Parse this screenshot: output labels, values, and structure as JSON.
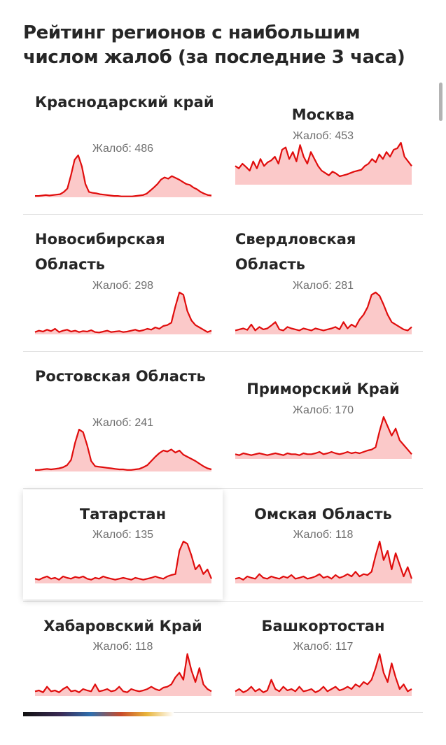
{
  "title": "Рейтинг регионов с наибольшим числом жалоб (за последние 3 часа)",
  "count_prefix": "Жалоб:",
  "colors": {
    "line": "#e00d0d",
    "fill": "#fbc9c9",
    "title": "#262626",
    "count_text": "#6f6f6f"
  },
  "regions": [
    {
      "name": "Краснодарский край",
      "count": "486",
      "series": [
        3,
        3,
        4,
        5,
        4,
        5,
        6,
        7,
        12,
        20,
        50,
        85,
        95,
        70,
        30,
        12,
        10,
        9,
        7,
        6,
        5,
        4,
        3,
        3,
        2,
        2,
        2,
        2,
        3,
        4,
        5,
        8,
        15,
        22,
        30,
        40,
        45,
        42,
        48,
        44,
        40,
        35,
        30,
        28,
        22,
        18,
        12,
        8,
        5,
        4
      ]
    },
    {
      "name": "Москва",
      "count": "453",
      "series": [
        40,
        35,
        45,
        38,
        30,
        50,
        35,
        55,
        40,
        48,
        52,
        60,
        45,
        75,
        80,
        55,
        70,
        50,
        85,
        60,
        45,
        70,
        55,
        40,
        30,
        25,
        20,
        28,
        24,
        18,
        20,
        22,
        25,
        28,
        30,
        32,
        40,
        45,
        55,
        48,
        65,
        55,
        70,
        60,
        75,
        78,
        90,
        60,
        50,
        40
      ]
    },
    {
      "name": "Новосибирская Область",
      "count": "298",
      "series": [
        5,
        8,
        6,
        10,
        7,
        12,
        5,
        8,
        10,
        6,
        8,
        5,
        7,
        6,
        9,
        5,
        4,
        6,
        8,
        5,
        6,
        7,
        5,
        6,
        8,
        10,
        7,
        9,
        12,
        10,
        15,
        12,
        18,
        20,
        25,
        60,
        90,
        85,
        50,
        30,
        20,
        15,
        10,
        5,
        8
      ]
    },
    {
      "name": "Свердловская Область",
      "count": "281",
      "series": [
        8,
        10,
        12,
        9,
        20,
        8,
        15,
        10,
        12,
        18,
        25,
        10,
        8,
        15,
        12,
        10,
        8,
        12,
        10,
        8,
        12,
        10,
        8,
        10,
        12,
        15,
        10,
        25,
        12,
        20,
        15,
        30,
        40,
        55,
        80,
        85,
        78,
        60,
        40,
        25,
        20,
        15,
        10,
        8,
        15
      ]
    },
    {
      "name": "Ростовская Область",
      "count": "241",
      "series": [
        3,
        3,
        4,
        5,
        4,
        5,
        6,
        8,
        12,
        22,
        55,
        80,
        75,
        50,
        20,
        10,
        9,
        8,
        7,
        6,
        5,
        4,
        4,
        3,
        3,
        4,
        5,
        8,
        12,
        20,
        28,
        35,
        40,
        38,
        42,
        36,
        40,
        32,
        28,
        24,
        20,
        15,
        10,
        6,
        4
      ]
    },
    {
      "name": "Приморский Край",
      "count": "170",
      "series": [
        10,
        8,
        12,
        10,
        8,
        10,
        12,
        10,
        8,
        10,
        12,
        10,
        8,
        12,
        10,
        10,
        8,
        12,
        10,
        10,
        12,
        15,
        10,
        12,
        15,
        12,
        10,
        12,
        15,
        12,
        14,
        12,
        15,
        18,
        20,
        25,
        60,
        90,
        70,
        50,
        65,
        40,
        30,
        20,
        10
      ]
    },
    {
      "name": "Татарстан",
      "count": "135",
      "series": [
        10,
        8,
        12,
        15,
        10,
        12,
        8,
        15,
        12,
        10,
        14,
        12,
        15,
        10,
        8,
        12,
        10,
        15,
        12,
        10,
        8,
        10,
        12,
        10,
        8,
        12,
        10,
        8,
        10,
        12,
        15,
        12,
        10,
        15,
        18,
        20,
        70,
        90,
        85,
        60,
        30,
        40,
        20,
        30,
        10
      ]
    },
    {
      "name": "Омская Область",
      "count": "118",
      "series": [
        10,
        12,
        8,
        15,
        12,
        10,
        20,
        12,
        10,
        15,
        12,
        10,
        15,
        12,
        18,
        10,
        12,
        15,
        10,
        12,
        15,
        20,
        12,
        15,
        10,
        18,
        12,
        15,
        20,
        15,
        25,
        15,
        20,
        18,
        25,
        60,
        90,
        50,
        70,
        30,
        65,
        40,
        15,
        35,
        10
      ]
    },
    {
      "name": "Хабаровский Край",
      "count": "118",
      "series": [
        10,
        12,
        8,
        20,
        10,
        12,
        8,
        15,
        20,
        10,
        12,
        8,
        15,
        12,
        10,
        25,
        10,
        12,
        15,
        10,
        12,
        20,
        10,
        8,
        15,
        12,
        10,
        12,
        15,
        20,
        15,
        12,
        18,
        20,
        25,
        40,
        50,
        35,
        90,
        55,
        30,
        60,
        25,
        15,
        10
      ]
    },
    {
      "name": "Башкортостан",
      "count": "117",
      "series": [
        10,
        15,
        8,
        12,
        20,
        10,
        15,
        8,
        12,
        35,
        15,
        10,
        20,
        12,
        15,
        10,
        20,
        10,
        12,
        15,
        8,
        12,
        20,
        10,
        15,
        20,
        12,
        15,
        20,
        15,
        25,
        20,
        30,
        25,
        35,
        60,
        90,
        50,
        30,
        70,
        40,
        15,
        25,
        10,
        15
      ]
    }
  ]
}
